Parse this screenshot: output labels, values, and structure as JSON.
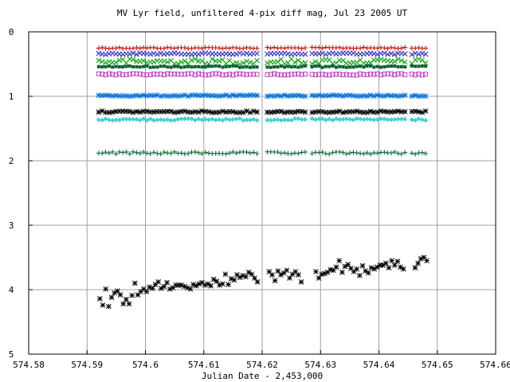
{
  "chart_data": {
    "type": "scatter",
    "title": "MV Lyr field, unfiltered 4-pix diff mag, Jul 23 2005 UT",
    "xlabel": "Julian Date - 2,453,000",
    "ylabel": "",
    "xlim": [
      574.58,
      574.66
    ],
    "ylim": [
      0,
      5
    ],
    "y_inverted": true,
    "grid": true,
    "legend": "none",
    "x_ticks": [
      {
        "v": 574.58,
        "label": "574.58"
      },
      {
        "v": 574.59,
        "label": "574.59"
      },
      {
        "v": 574.6,
        "label": "574.6"
      },
      {
        "v": 574.61,
        "label": "574.61"
      },
      {
        "v": 574.62,
        "label": "574.62"
      },
      {
        "v": 574.63,
        "label": "574.63"
      },
      {
        "v": 574.64,
        "label": "574.64"
      },
      {
        "v": 574.65,
        "label": "574.65"
      },
      {
        "v": 574.66,
        "label": "574.66"
      }
    ],
    "y_ticks": [
      {
        "v": 0,
        "label": "0"
      },
      {
        "v": 1,
        "label": "1"
      },
      {
        "v": 2,
        "label": "2"
      },
      {
        "v": 3,
        "label": "3"
      },
      {
        "v": 4,
        "label": "4"
      },
      {
        "v": 5,
        "label": "5"
      }
    ],
    "x_start": 574.592,
    "x_end": 574.648,
    "n_points": 96,
    "gaps": [
      [
        574.6195,
        574.6205
      ],
      [
        574.6275,
        574.6285
      ],
      [
        574.6445,
        574.6455
      ]
    ],
    "series": [
      {
        "symbol": "plus",
        "color": "#cc0000",
        "base": 0.25,
        "noise": 0.01
      },
      {
        "symbol": "cross",
        "color": "#2020c0",
        "base": 0.34,
        "noise": 0.012
      },
      {
        "symbol": "cross",
        "color": "#00a000",
        "base": 0.46,
        "noise": 0.04
      },
      {
        "symbol": "fsquare",
        "color": "#006030",
        "base": 0.54,
        "noise": 0.012
      },
      {
        "symbol": "square",
        "color": "#c040c0",
        "base": 0.66,
        "noise": 0.012
      },
      {
        "symbol": "star",
        "color": "#0070e0",
        "base": 0.99,
        "noise": 0.01
      },
      {
        "symbol": "star",
        "color": "#000000",
        "base": 1.24,
        "noise": 0.012
      },
      {
        "symbol": "diamond",
        "color": "#40d0d0",
        "base": 1.36,
        "noise": 0.015
      },
      {
        "symbol": "plus",
        "color": "#006030",
        "base": 1.88,
        "noise": 0.018
      }
    ],
    "variable": {
      "symbol": "star",
      "color": "#000000",
      "x": [
        574.5922,
        574.5927,
        574.5932,
        574.5937,
        574.5942,
        574.5947,
        574.5952,
        574.5957,
        574.5962,
        574.5967,
        574.5972,
        574.5977,
        574.5982,
        574.5987,
        574.5992,
        574.5997,
        574.6002,
        574.6007,
        574.6012,
        574.6017,
        574.6022,
        574.6027,
        574.6032,
        574.6037,
        574.6042,
        574.6047,
        574.6052,
        574.6057,
        574.6062,
        574.6067,
        574.6072,
        574.6077,
        574.6082,
        574.6087,
        574.6092,
        574.6097,
        574.6102,
        574.6107,
        574.6112,
        574.6117,
        574.6122,
        574.6127,
        574.6132,
        574.6137,
        574.6142,
        574.6147,
        574.6152,
        574.6157,
        574.6162,
        574.6167,
        574.6172,
        574.6177,
        574.6182,
        574.6187,
        574.6192,
        574.6212,
        574.6217,
        574.6222,
        574.6227,
        574.6232,
        574.6237,
        574.6242,
        574.6247,
        574.6252,
        574.6257,
        574.6262,
        574.6267,
        574.6292,
        574.6297,
        574.6302,
        574.6307,
        574.6312,
        574.6317,
        574.6322,
        574.6327,
        574.6332,
        574.6337,
        574.6342,
        574.6347,
        574.6352,
        574.6357,
        574.6362,
        574.6367,
        574.6372,
        574.6377,
        574.6382,
        574.6387,
        574.6392,
        574.6397,
        574.6402,
        574.6407,
        574.6412,
        574.6417,
        574.6422,
        574.6427,
        574.6432,
        574.6437,
        574.6442,
        574.6462,
        574.6467,
        574.6472,
        574.6477,
        574.6482
      ],
      "y": [
        4.14,
        4.24,
        3.99,
        4.26,
        4.12,
        4.05,
        4.02,
        4.08,
        4.22,
        4.15,
        4.22,
        4.09,
        3.9,
        4.08,
        4.03,
        3.99,
        4.03,
        3.96,
        3.98,
        3.92,
        3.88,
        3.98,
        3.95,
        3.89,
        3.99,
        3.97,
        3.93,
        3.93,
        3.93,
        3.95,
        3.97,
        3.99,
        3.92,
        3.94,
        3.91,
        3.89,
        3.93,
        3.91,
        3.94,
        3.84,
        3.87,
        3.93,
        3.91,
        3.76,
        3.92,
        3.83,
        3.85,
        3.77,
        3.81,
        3.78,
        3.8,
        3.73,
        3.76,
        3.82,
        3.88,
        3.72,
        3.77,
        3.86,
        3.71,
        3.77,
        3.74,
        3.7,
        3.82,
        3.76,
        3.72,
        3.77,
        3.88,
        3.72,
        3.82,
        3.76,
        3.75,
        3.73,
        3.69,
        3.7,
        3.65,
        3.55,
        3.73,
        3.64,
        3.61,
        3.67,
        3.72,
        3.68,
        3.78,
        3.63,
        3.71,
        3.74,
        3.66,
        3.68,
        3.65,
        3.62,
        3.62,
        3.59,
        3.66,
        3.55,
        3.62,
        3.56,
        3.65,
        3.68,
        3.66,
        3.59,
        3.52,
        3.5,
        3.55
      ]
    }
  }
}
